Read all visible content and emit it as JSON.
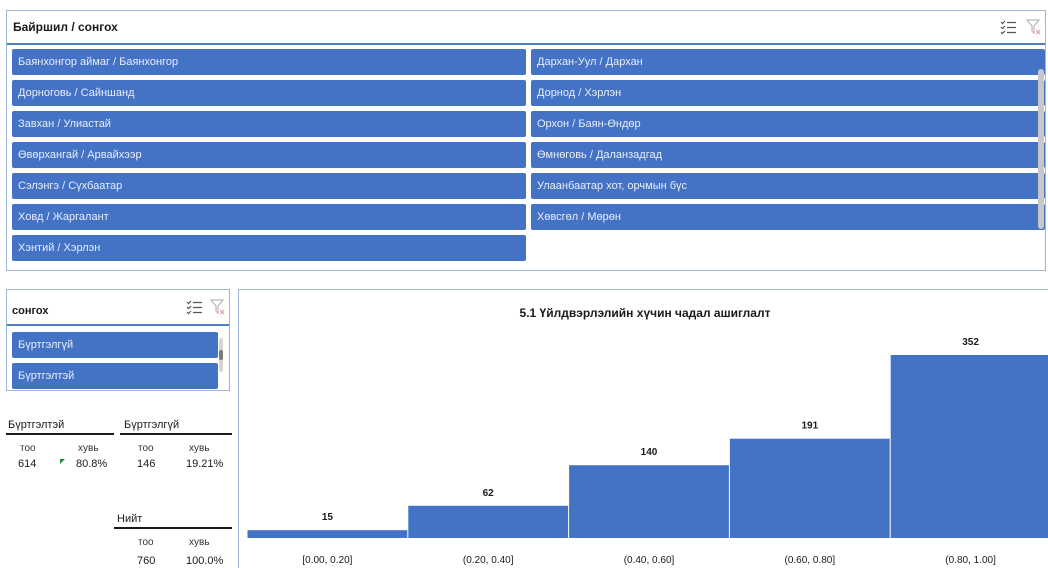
{
  "location_slicer": {
    "title": "Байршил / сонгох",
    "items": [
      "Баянхонгор аймаг / Баянхонгор",
      "Дархан-Уул / Дархан",
      "Дорноговь / Сайншанд",
      "Дорнод / Хэрлэн",
      "Завхан / Улиастай",
      "Орхон / Баян-Өндөр",
      "Өвөрхангай / Арвайхээр",
      "Өмнөговь / Даланзадгад",
      "Сэлэнгэ / Сүхбаатар",
      "Улаанбаатар хот, орчмын бүс",
      "Ховд / Жаргалант",
      "Хөвсгөл / Мөрөн",
      "Хэнтий / Хэрлэн"
    ]
  },
  "select_slicer": {
    "title": "сонгох",
    "items": [
      "Бүртгэлгүй",
      "Бүртгэлтэй"
    ]
  },
  "stats": {
    "registered": {
      "label": "Бүртгэлтэй",
      "count_label": "тоо",
      "pct_label": "хувь",
      "count": "614",
      "pct": "80.8%"
    },
    "unregistered": {
      "label": "Бүртгэлгүй",
      "count_label": "тоо",
      "pct_label": "хувь",
      "count": "146",
      "pct": "19.21%"
    },
    "total": {
      "label": "Нийт",
      "count_label": "тоо",
      "pct_label": "хувь",
      "count": "760",
      "pct": "100.0%"
    }
  },
  "colors": {
    "accent": "#4472c4",
    "green_marker": "#1e8a3c"
  },
  "icons": {
    "multi_select": "multi-select-icon",
    "clear_filter": "clear-filter-icon"
  },
  "chart_data": {
    "type": "bar",
    "title": "5.1 Үйлдвэрлэлийн хүчин чадал ашиглалт",
    "categories": [
      "[0.00, 0.20]",
      "(0.20, 0.40]",
      "(0.40, 0.60]",
      "(0.60, 0.80]",
      "(0.80, 1.00]"
    ],
    "values": [
      15,
      62,
      140,
      191,
      352
    ],
    "xlabel": "",
    "ylabel": "",
    "ylim": [
      0,
      352
    ],
    "grid": false,
    "legend": "none"
  }
}
